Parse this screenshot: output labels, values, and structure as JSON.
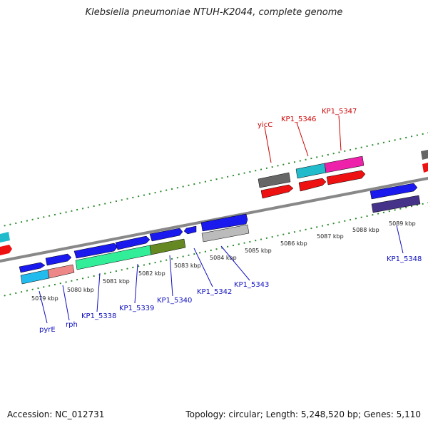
{
  "title": "Klebsiella pneumoniae NTUH-K2044, complete genome",
  "footer": {
    "accession": "Accession: NC_012731",
    "summary": "Topology: circular; Length: 5,248,520 bp; Genes: 5,110"
  },
  "kbp_ticks": [
    "5079 kbp",
    "5080 kbp",
    "5081 kbp",
    "5082 kbp",
    "5083 kbp",
    "5084 kbp",
    "5085 kbp",
    "5086 kbp",
    "5087 kbp",
    "5088 kbp",
    "5089 kbp"
  ],
  "colors": {
    "forward_cds": "#1a1aee",
    "reverse_cds": "#1a1aee",
    "rrna_red": "#ee1111",
    "label_blue": "#1010c0",
    "label_red": "#cc0000",
    "tick_green": "#2a8a2a",
    "axis_grey": "#888888"
  },
  "gene_labels": {
    "pyrE": "pyrE",
    "rph": "rph",
    "kp1_5338": "KP1_5338",
    "kp1_5339": "KP1_5339",
    "kp1_5340": "KP1_5340",
    "kp1_5342": "KP1_5342",
    "kp1_5343": "KP1_5343",
    "kp1_5348": "KP1_5348",
    "yicC": "yicC",
    "kp1_5346": "KP1_5346",
    "kp1_5347": "KP1_5347"
  },
  "features": [
    {
      "name": "pyrE-gene",
      "color": "#1a1aee",
      "strand": "+"
    },
    {
      "name": "rph-gene",
      "color": "#1a1aee",
      "strand": "+"
    },
    {
      "name": "cds-5338",
      "color": "#1a1aee",
      "strand": "+"
    },
    {
      "name": "cds-5339",
      "color": "#1a1aee",
      "strand": "+"
    },
    {
      "name": "cds-5340",
      "color": "#1a1aee",
      "strand": "+"
    },
    {
      "name": "cds-5342",
      "color": "#1a1aee",
      "strand": "-"
    },
    {
      "name": "cds-5343",
      "color": "#1a1aee",
      "strand": "+"
    },
    {
      "name": "cds-5348",
      "color": "#1a1aee",
      "strand": "+"
    },
    {
      "name": "yicC-gene",
      "color": "#666666",
      "strand": "+"
    },
    {
      "name": "cds-5346",
      "color": "#22bbcc",
      "strand": "+"
    },
    {
      "name": "cds-5347",
      "color": "#ee22aa",
      "strand": "+"
    }
  ]
}
